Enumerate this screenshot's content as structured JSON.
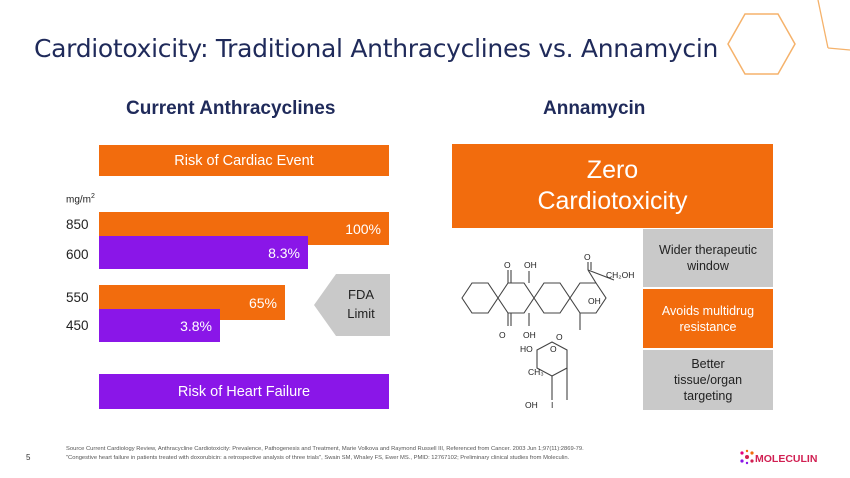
{
  "slide": {
    "title": "Cardiotoxicity: Traditional Anthracyclines vs. Annamycin",
    "page_number": "5"
  },
  "left": {
    "heading": "Current Anthracyclines",
    "top_banner": "Risk of Cardiac Event",
    "bottom_banner": "Risk of Heart Failure",
    "unit_label": "mg/m",
    "unit_sup": "2",
    "bars": [
      {
        "dose": "850",
        "value_label": "100%",
        "value": 100,
        "color": "#f26c0d"
      },
      {
        "dose": "600",
        "value_label": "8.3%",
        "value": 8.3,
        "color": "#8a16e8"
      },
      {
        "dose": "550",
        "value_label": "65%",
        "value": 65,
        "color": "#f26c0d"
      },
      {
        "dose": "450",
        "value_label": "3.8%",
        "value": 3.8,
        "color": "#8a16e8"
      }
    ],
    "fda_limit": {
      "line1": "FDA",
      "line2": "Limit"
    }
  },
  "right": {
    "heading": "Annamycin",
    "zero_line1": "Zero",
    "zero_line2": "Cardiotoxicity",
    "benefits": [
      {
        "line1": "Wider therapeutic",
        "line2": "window",
        "style": "gray"
      },
      {
        "line1": "Avoids multidrug",
        "line2": "resistance",
        "style": "orange"
      },
      {
        "line1": "Better",
        "line2": "tissue/organ",
        "line3": "targeting",
        "style": "gray"
      }
    ],
    "molecule_labels": {
      "o_top1": "O",
      "oh_top": "OH",
      "o_top2": "O",
      "ch2oh": "CH₂OH",
      "oh_mid": "OH",
      "o_bot1": "O",
      "oh_bot": "OH",
      "o_ring": "O",
      "ho": "HO",
      "o_sugar": "O",
      "ch3": "CH₃",
      "oh_sugar": "OH",
      "i_sugar": "I"
    }
  },
  "footer": {
    "line1": "Source Current Cardiology Review, Anthracycline Cardiotoxicity: Prevalence, Pathogenesis and Treatment, Marie Volkova and Raymond Russell III, Referenced from Cancer. 2003 Jun 1;97(11):2869-79.",
    "line2": "\"Congestive heart failure in patients treated with doxorubicin: a retrospective analysis of three trials\", Swain SM, Whaley FS, Ewer MS., PMID: 12767102; Preliminary clinical studies from Moleculin."
  },
  "logo": {
    "text": "MOLECULIN",
    "color": "#d11f52"
  }
}
